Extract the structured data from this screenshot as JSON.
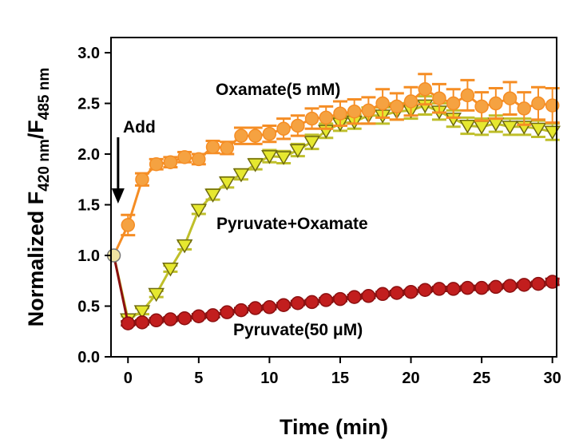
{
  "chart_data": {
    "type": "line",
    "xlabel": "Time (min)",
    "ylabel": {
      "prefix": "Normalized F",
      "sub1": "420 nm",
      "mid": "/F",
      "sub2": "485 nm"
    },
    "xlim": [
      -1.2,
      30.3
    ],
    "ylim": [
      0,
      3.15
    ],
    "xticks": [
      0,
      5,
      10,
      15,
      20,
      25,
      30
    ],
    "yticks": [
      0.0,
      0.5,
      1.0,
      1.5,
      2.0,
      2.5,
      3.0
    ],
    "xtick_labels": [
      "0",
      "5",
      "10",
      "15",
      "20",
      "25",
      "30"
    ],
    "ytick_labels": [
      "0.0",
      "0.5",
      "1.0",
      "1.5",
      "2.0",
      "2.5",
      "3.0"
    ],
    "grid": false,
    "colors": {
      "oxamate_line": "#f58d24",
      "oxamate_marker": "#f5a241",
      "pyruvate_oxamate_line": "#bfbf2a",
      "pyruvate_oxamate_marker": "#e6e82f",
      "pyruvate_line": "#8b1010",
      "pyruvate_marker": "#c21e1e",
      "arrow": "#000000"
    },
    "annotations": {
      "add_label": "Add",
      "add_x": -0.7,
      "oxamate_label": "Oxamate(5 mM)",
      "pyr_oxa_label": "Pyruvate+Oxamate",
      "pyruvate_label": "Pyruvate(50 μM)"
    },
    "series": [
      {
        "key": "oxamate",
        "marker": "circle",
        "x": [
          -1,
          0,
          1,
          2,
          3,
          4,
          5,
          6,
          7,
          8,
          9,
          10,
          11,
          12,
          13,
          14,
          15,
          16,
          17,
          18,
          19,
          20,
          21,
          22,
          23,
          24,
          25,
          26,
          27,
          28,
          29,
          30
        ],
        "y": [
          1.0,
          1.3,
          1.75,
          1.9,
          1.92,
          1.97,
          1.95,
          2.07,
          2.06,
          2.18,
          2.18,
          2.2,
          2.25,
          2.28,
          2.35,
          2.36,
          2.4,
          2.42,
          2.43,
          2.5,
          2.47,
          2.52,
          2.64,
          2.55,
          2.5,
          2.58,
          2.47,
          2.5,
          2.55,
          2.45,
          2.5,
          2.48
        ],
        "err": [
          0,
          0.1,
          0.06,
          0.05,
          0.05,
          0.05,
          0.05,
          0.06,
          0.06,
          0.08,
          0.08,
          0.08,
          0.1,
          0.1,
          0.1,
          0.11,
          0.12,
          0.12,
          0.13,
          0.14,
          0.13,
          0.14,
          0.15,
          0.14,
          0.14,
          0.15,
          0.14,
          0.15,
          0.16,
          0.16,
          0.16,
          0.17
        ]
      },
      {
        "key": "pyruvate_oxamate",
        "marker": "triangle-down",
        "x": [
          -1,
          0,
          1,
          2,
          3,
          4,
          5,
          6,
          7,
          8,
          9,
          10,
          11,
          12,
          13,
          14,
          15,
          16,
          17,
          18,
          19,
          20,
          21,
          22,
          23,
          24,
          25,
          26,
          27,
          28,
          29,
          30
        ],
        "y": [
          1.0,
          0.37,
          0.45,
          0.62,
          0.87,
          1.1,
          1.45,
          1.6,
          1.72,
          1.8,
          1.9,
          1.98,
          1.97,
          2.04,
          2.12,
          2.23,
          2.3,
          2.32,
          2.38,
          2.38,
          2.42,
          2.43,
          2.48,
          2.42,
          2.35,
          2.28,
          2.27,
          2.3,
          2.27,
          2.27,
          2.25,
          2.22
        ],
        "err": [
          0,
          0.03,
          0.03,
          0.03,
          0.03,
          0.04,
          0.04,
          0.05,
          0.05,
          0.05,
          0.05,
          0.06,
          0.06,
          0.06,
          0.07,
          0.07,
          0.07,
          0.07,
          0.08,
          0.08,
          0.08,
          0.08,
          0.09,
          0.08,
          0.08,
          0.08,
          0.08,
          0.08,
          0.08,
          0.08,
          0.08,
          0.08
        ]
      },
      {
        "key": "pyruvate",
        "marker": "circle",
        "x": [
          -1,
          0,
          1,
          2,
          3,
          4,
          5,
          6,
          7,
          8,
          9,
          10,
          11,
          12,
          13,
          14,
          15,
          16,
          17,
          18,
          19,
          20,
          21,
          22,
          23,
          24,
          25,
          26,
          27,
          28,
          29,
          30
        ],
        "y": [
          1.0,
          0.33,
          0.34,
          0.36,
          0.37,
          0.38,
          0.4,
          0.41,
          0.44,
          0.46,
          0.48,
          0.49,
          0.51,
          0.53,
          0.54,
          0.56,
          0.57,
          0.59,
          0.6,
          0.62,
          0.63,
          0.64,
          0.66,
          0.67,
          0.67,
          0.68,
          0.68,
          0.69,
          0.7,
          0.71,
          0.72,
          0.74
        ],
        "err": [
          0,
          0.02,
          0.02,
          0.02,
          0.02,
          0.02,
          0.02,
          0.02,
          0.02,
          0.02,
          0.02,
          0.02,
          0.02,
          0.02,
          0.02,
          0.02,
          0.02,
          0.02,
          0.02,
          0.02,
          0.02,
          0.02,
          0.02,
          0.02,
          0.02,
          0.02,
          0.02,
          0.02,
          0.02,
          0.02,
          0.02,
          0.03
        ]
      }
    ]
  }
}
